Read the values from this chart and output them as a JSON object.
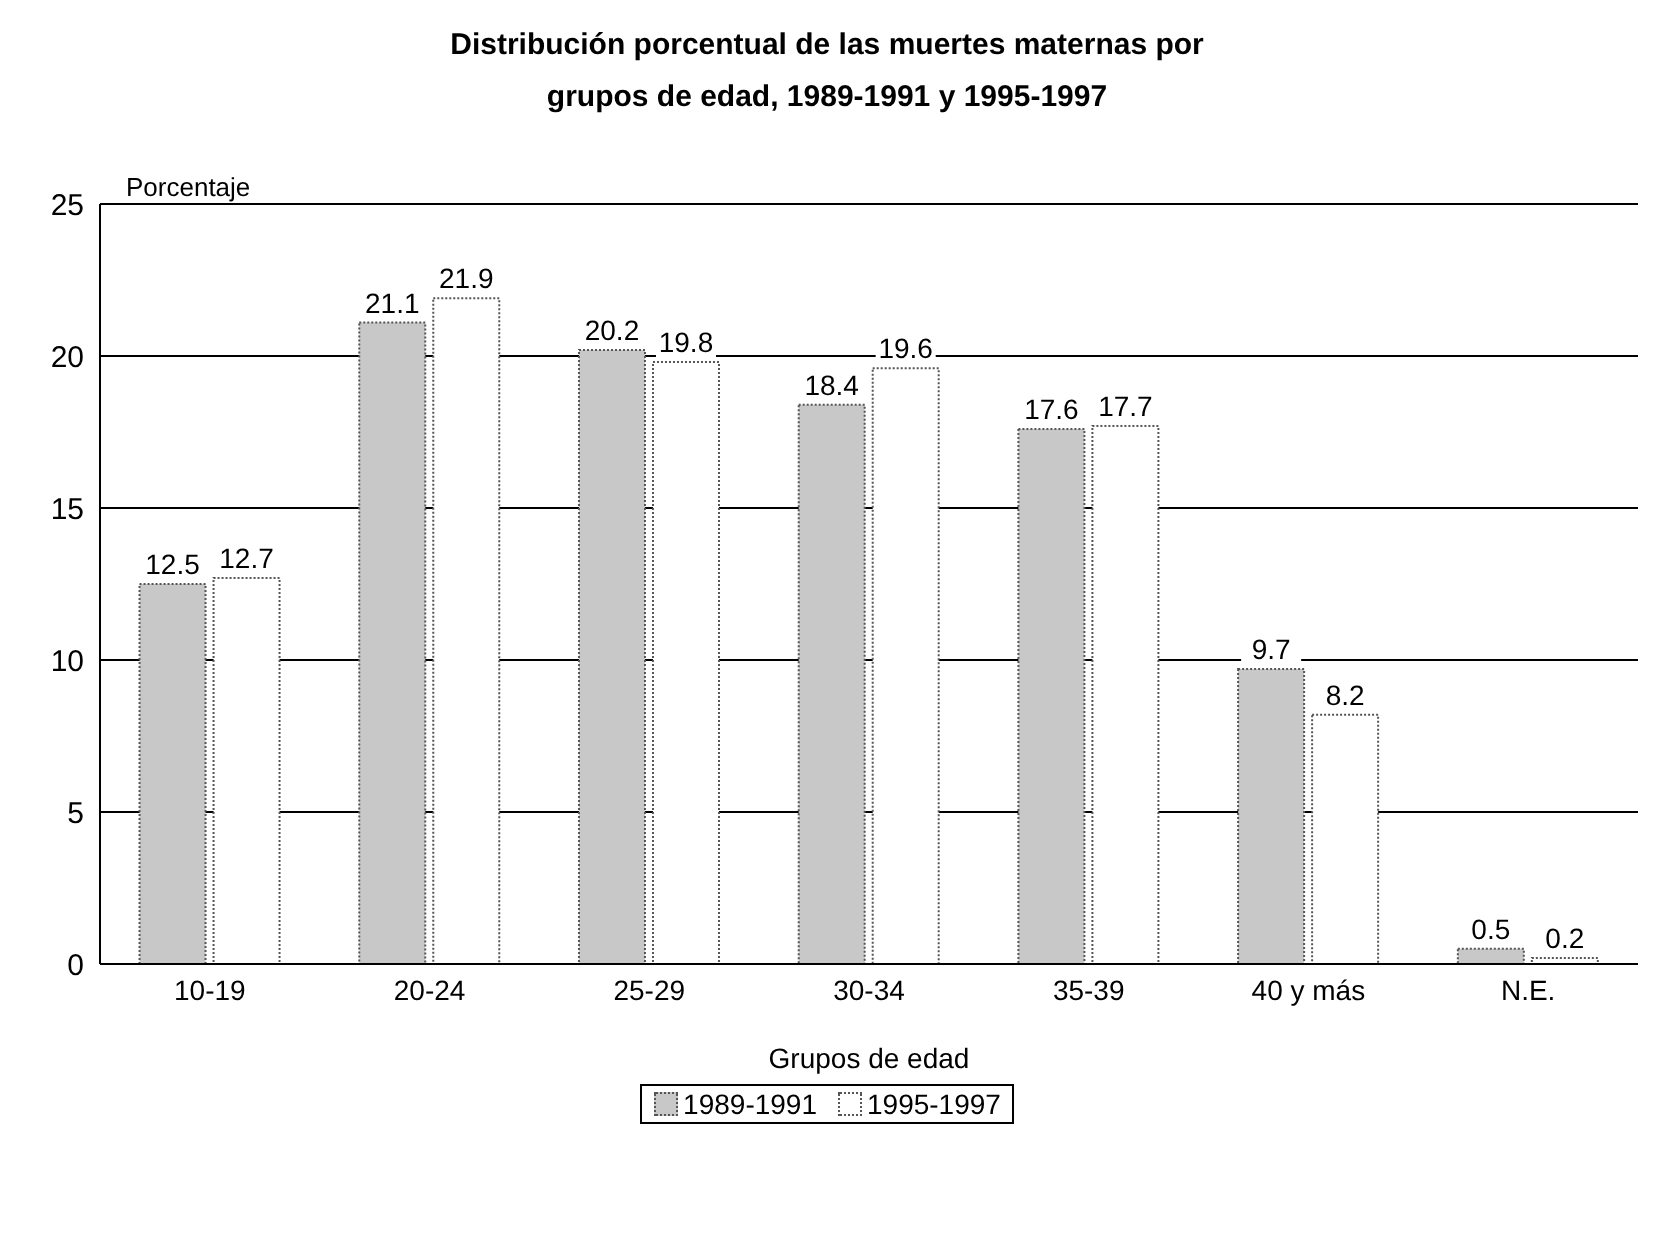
{
  "chart_data": {
    "type": "bar",
    "title": "Distribución porcentual de las muertes maternas por grupos de edad, 1989-1991 y 1995-1997",
    "ylabel": "Porcentaje",
    "xlabel": "Grupos de edad",
    "categories": [
      "10-19",
      "20-24",
      "25-29",
      "30-34",
      "35-39",
      "40 y más",
      "N.E."
    ],
    "series": [
      {
        "name": "1989-1991",
        "color": "#c8c8c8",
        "values": [
          12.5,
          21.1,
          20.2,
          18.4,
          17.6,
          9.7,
          0.5
        ]
      },
      {
        "name": "1995-1997",
        "color": "#ffffff",
        "values": [
          12.7,
          21.9,
          19.8,
          19.6,
          17.7,
          8.2,
          0.2
        ]
      }
    ],
    "ylim": [
      0,
      25
    ],
    "yticks": [
      0,
      5,
      10,
      15,
      20,
      25
    ],
    "grid": "y",
    "legend": "bottom",
    "data_labels": true
  }
}
